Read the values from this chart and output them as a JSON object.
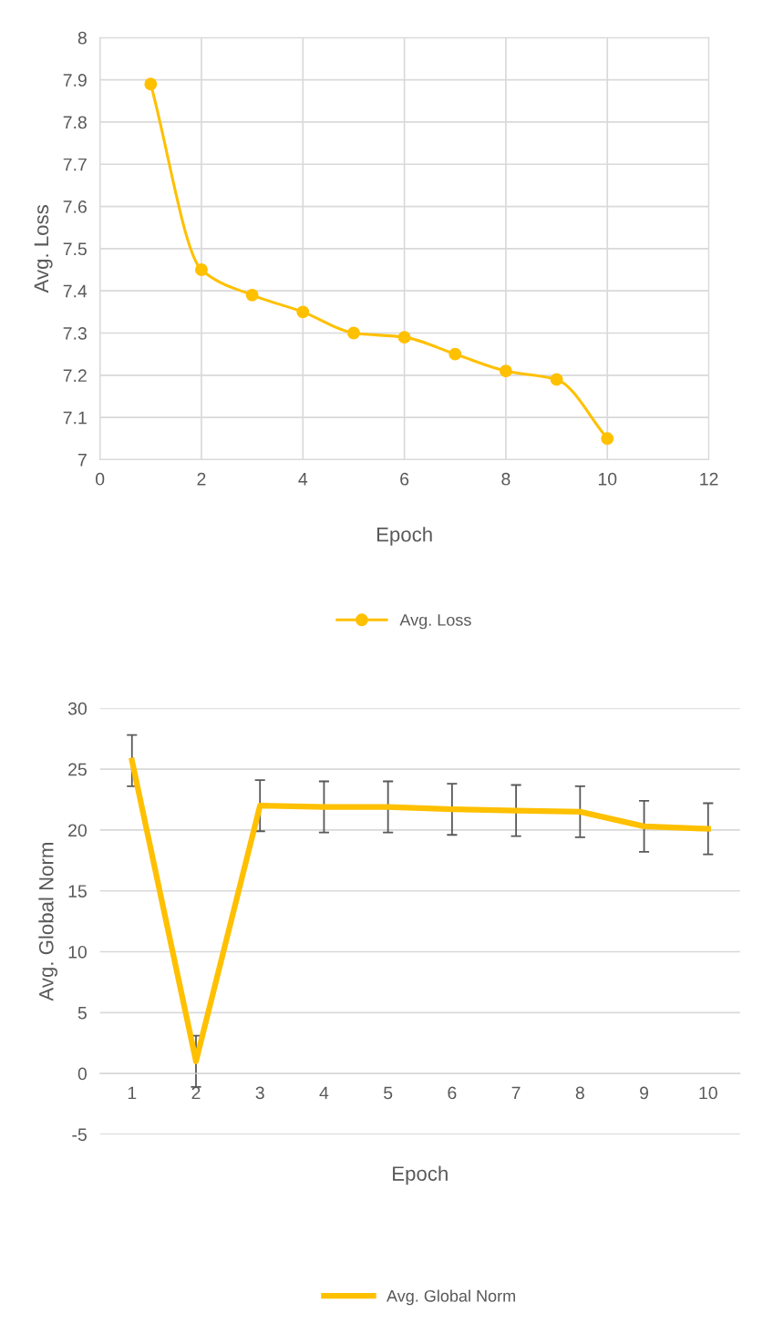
{
  "chart_data": [
    {
      "type": "line",
      "xlabel": "Epoch",
      "ylabel": "Avg. Loss",
      "x": [
        1,
        2,
        3,
        4,
        5,
        6,
        7,
        8,
        9,
        10
      ],
      "series": [
        {
          "name": "Avg. Loss",
          "color": "#ffc000",
          "values": [
            7.89,
            7.45,
            7.39,
            7.35,
            7.3,
            7.29,
            7.25,
            7.21,
            7.19,
            7.05
          ]
        }
      ],
      "xlim": [
        0,
        12
      ],
      "xticks": [
        0,
        2,
        4,
        6,
        8,
        10,
        12
      ],
      "ylim": [
        7,
        8
      ],
      "yticks": [
        7,
        7.1,
        7.2,
        7.3,
        7.4,
        7.5,
        7.6,
        7.7,
        7.8,
        7.9,
        8
      ],
      "grid": true,
      "legend": "bottom",
      "marker": "circle"
    },
    {
      "type": "line",
      "xlabel": "Epoch",
      "ylabel": "Avg. Global Norm",
      "categories": [
        "1",
        "2",
        "3",
        "4",
        "5",
        "6",
        "7",
        "8",
        "9",
        "10"
      ],
      "series": [
        {
          "name": "Avg. Global Norm",
          "color": "#ffc000",
          "values": [
            25.7,
            1.0,
            22.0,
            21.9,
            21.9,
            21.7,
            21.6,
            21.5,
            20.3,
            20.1
          ],
          "errors": [
            2.1,
            2.1,
            2.1,
            2.1,
            2.1,
            2.1,
            2.1,
            2.1,
            2.1,
            2.1
          ]
        }
      ],
      "ylim": [
        -5,
        30
      ],
      "yticks": [
        -5,
        0,
        5,
        10,
        15,
        20,
        25,
        30
      ],
      "grid": "y",
      "legend": "bottom"
    }
  ]
}
